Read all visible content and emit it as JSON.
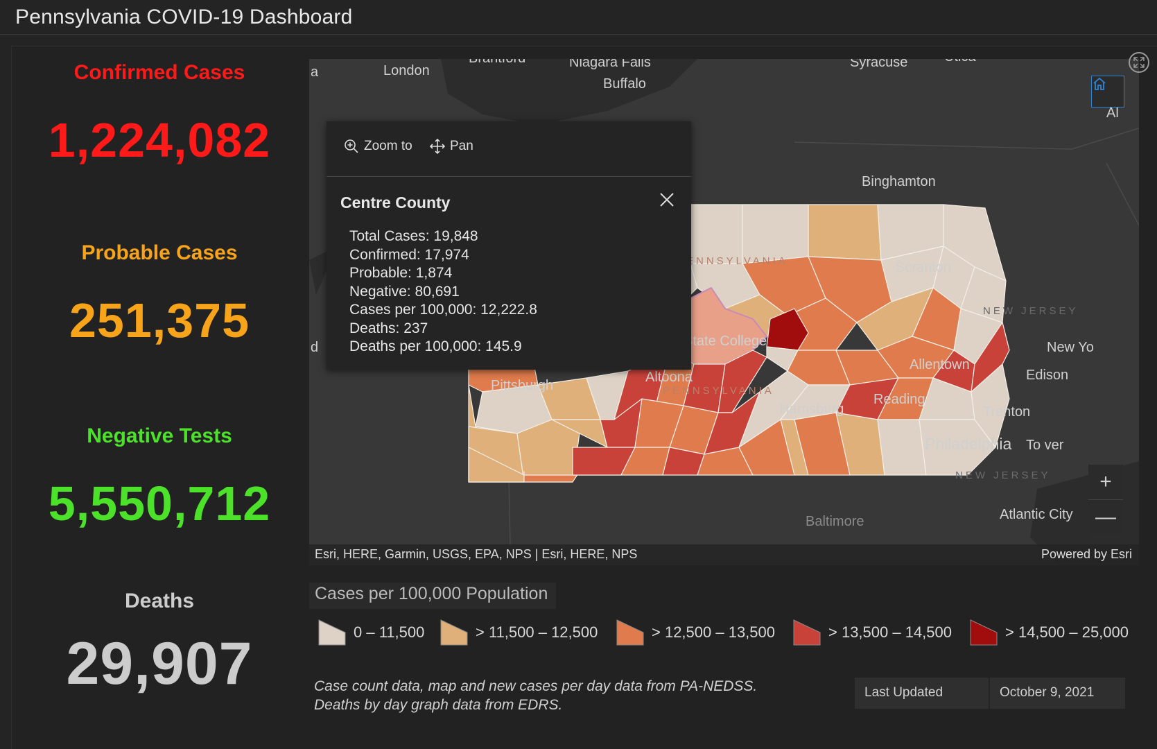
{
  "header": {
    "title": "Pennsylvania COVID-19 Dashboard"
  },
  "stats": {
    "confirmed": {
      "label": "Confirmed Cases",
      "value": "1,224,082",
      "color": "#ff1a1a"
    },
    "probable": {
      "label": "Probable Cases",
      "value": "251,375",
      "color": "#f7a41a"
    },
    "negative": {
      "label": "Negative Tests",
      "value": "5,550,712",
      "color": "#4ce22a"
    },
    "deaths": {
      "label": "Deaths",
      "value": "29,907",
      "color": "#cccccc"
    }
  },
  "map": {
    "places": {
      "london": "London",
      "brantford": "Brantford",
      "niagara_falls": "Niagara Falls",
      "buffalo": "Buffalo",
      "syracuse": "Syracuse",
      "utica": "Utica",
      "albany": "Al",
      "binghamton": "Binghamton",
      "scranton": "Scranton",
      "new_jersey_1": "NEW JERSEY",
      "new_york": "New Yo",
      "edison": "Edison",
      "allentown": "Allentown",
      "state_college": "State College",
      "altoona": "Altoona",
      "pittsburgh": "Pittsburgh",
      "harrisburg": "Harrisburg",
      "reading": "Reading",
      "trenton": "Trenton",
      "philadelphia": "Philadelphia",
      "toms_river": "To    ver",
      "new_jersey_2": "NEW JERSEY",
      "atlantic_city": "Atlantic City",
      "baltimore": "Baltimore",
      "pennsylvania_1": "PENNSYLVANIA",
      "pennsylvania_2": "PENNSYLVANIA",
      "edge_a": "a",
      "edge_d": "d"
    },
    "attribution": "Esri, HERE, Garmin, USGS, EPA, NPS | Esri, HERE, NPS",
    "powered_by": "Powered by Esri",
    "zoom_in": "+",
    "zoom_out": "—",
    "home_icon": "home-icon",
    "fullscreen_icon": "expand-icon"
  },
  "popup": {
    "zoom_to": "Zoom to",
    "pan": "Pan",
    "title": "Centre County",
    "lines": [
      "Total Cases: 19,848",
      "Confirmed: 17,974",
      "Probable: 1,874",
      "Negative: 80,691",
      "Cases per 100,000: 12,222.8",
      "Deaths: 237",
      "Deaths per 100,000: 145.9"
    ]
  },
  "legend": {
    "title": "Cases per 100,000 Population",
    "items": [
      {
        "label": "0 – 11,500",
        "color": "#ddd2c5"
      },
      {
        "label": "> 11,500 – 12,500",
        "color": "#e0b07b"
      },
      {
        "label": "> 12,500 – 13,500",
        "color": "#df7b4c"
      },
      {
        "label": "> 13,500 – 14,500",
        "color": "#c8423a"
      },
      {
        "label": "> 14,500 – 25,000",
        "color": "#a10c0c"
      }
    ]
  },
  "footer": {
    "sources": [
      "Case count data, map and new cases per day data from PA-NEDSS.",
      "Deaths by day graph data from EDRS."
    ],
    "last_updated_label": "Last Updated",
    "last_updated_value": "October 9, 2021"
  }
}
